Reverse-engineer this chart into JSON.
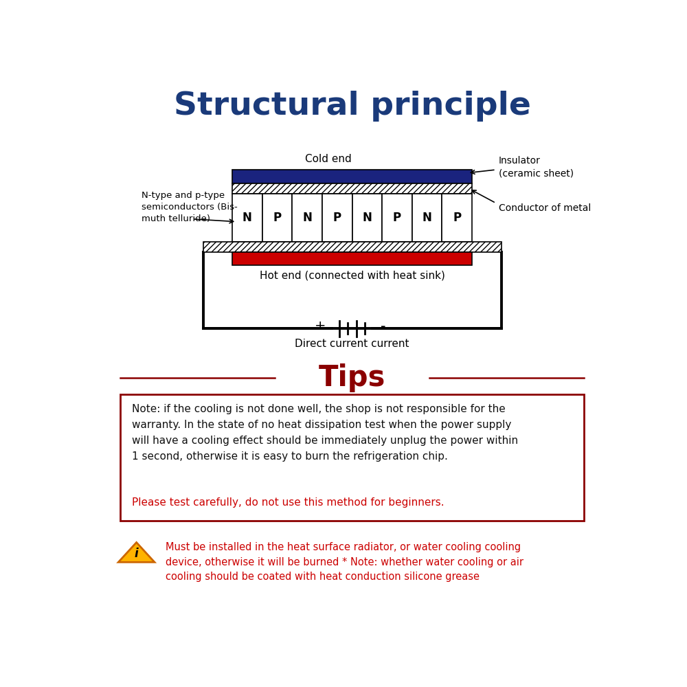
{
  "title": "Structural principle",
  "title_color": "#1a3a7a",
  "bg_color": "#ffffff",
  "cold_bar_color": "#1a237e",
  "hot_bar_color": "#cc0000",
  "circuit_color": "#111111",
  "np_labels": [
    "N",
    "P",
    "N",
    "P",
    "N",
    "P",
    "N",
    "P"
  ],
  "cold_end_label": "Cold end",
  "hot_end_label": "Hot end (connected with heat sink)",
  "insulator_label": "Insulator\n(ceramic sheet)",
  "conductor_label": "Conductor of metal",
  "semiconductor_label": "N-type and p-type\nsemiconductors (Bis-\nmuth telluride)",
  "dc_label": "Direct current current",
  "tips_title": "Tips",
  "tips_title_color": "#8b0000",
  "tips_box_color": "#8b0000",
  "tips_text": "Note: if the cooling is not done well, the shop is not responsible for the\nwarranty. In the state of no heat dissipation test when the power supply\nwill have a cooling effect should be immediately unplug the power within\n1 second, otherwise it is easy to burn the refrigeration chip.",
  "tips_red_text": "Please test carefully, do not use this method for beginners.",
  "tips_text_color": "#111111",
  "tips_red_color": "#cc0000",
  "warning_text": "Must be installed in the heat surface radiator, or water cooling cooling\ndevice, otherwise it will be burned * Note: whether water cooling or air\ncooling should be coated with heat conduction silicone grease",
  "warning_color": "#cc0000"
}
